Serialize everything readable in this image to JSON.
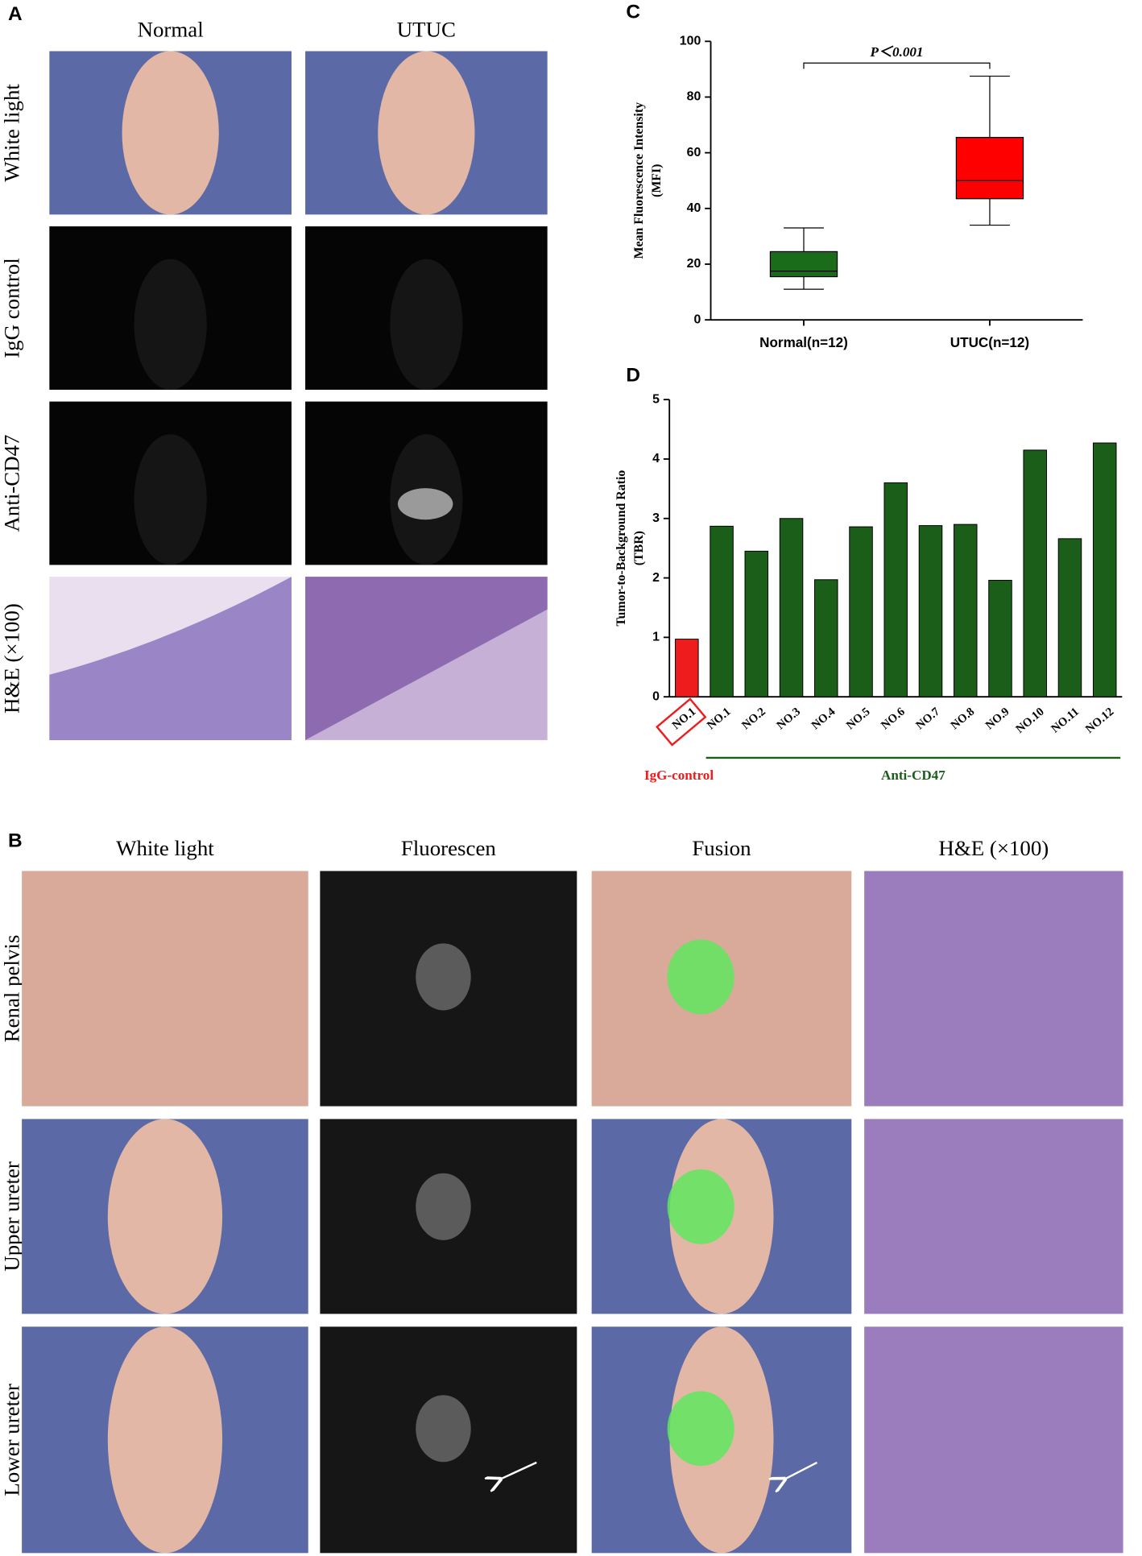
{
  "panel_a": {
    "label": "A",
    "columns": [
      "Normal",
      "UTUC"
    ],
    "rows": [
      "White light",
      "IgG control",
      "Anti-CD47",
      "H&E (×100)"
    ]
  },
  "panel_b": {
    "label": "B",
    "columns": [
      "White light",
      "Fluorescen",
      "Fusion",
      "H&E (×100)"
    ],
    "rows": [
      "Renal pelvis",
      "Upper ureter",
      "Lower ureter"
    ]
  },
  "chart_data": [
    {
      "type": "box",
      "panel_label": "C",
      "y_label": [
        "Mean Fluorescence Intensity",
        "(MFI)"
      ],
      "annotation": "P＜0.001",
      "categories": [
        "Normal(n=12)",
        "UTUC(n=12)"
      ],
      "boxes": [
        {
          "min": 11,
          "q1": 15.5,
          "median": 17.5,
          "q3": 24.5,
          "max": 33,
          "color": "#1a6b1a"
        },
        {
          "min": 34,
          "q1": 43.5,
          "median": 50,
          "q3": 65.5,
          "max": 87.5,
          "color": "#ff0000"
        }
      ],
      "ylim": [
        0,
        100
      ],
      "yticks": [
        0,
        20,
        40,
        60,
        80,
        100
      ]
    },
    {
      "type": "bar",
      "panel_label": "D",
      "y_label": [
        "Tumor-to-Background Ratio",
        "(TBR)"
      ],
      "categories": [
        "NO.1",
        "NO.1",
        "NO.2",
        "NO.3",
        "NO.4",
        "NO.5",
        "NO.6",
        "NO.7",
        "NO.8",
        "NO.9",
        "NO.10",
        "NO.11",
        "NO.12"
      ],
      "series": [
        {
          "name": "IgG-control",
          "color": "#ee1c1c",
          "values": [
            0.97,
            null,
            null,
            null,
            null,
            null,
            null,
            null,
            null,
            null,
            null,
            null,
            null
          ]
        },
        {
          "name": "Anti-CD47",
          "color": "#1a5e1a",
          "values": [
            null,
            2.87,
            2.45,
            3.0,
            1.97,
            2.86,
            3.6,
            2.88,
            2.9,
            1.96,
            4.15,
            2.66,
            4.27
          ]
        }
      ],
      "ylim": [
        0,
        5
      ],
      "yticks": [
        0,
        1,
        2,
        3,
        4,
        5
      ]
    }
  ]
}
